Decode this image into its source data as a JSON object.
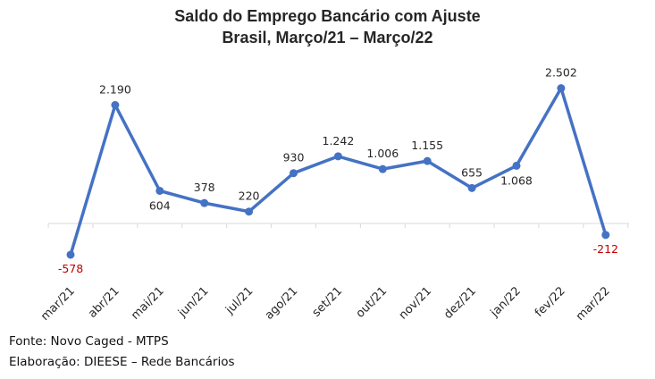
{
  "chart_data": {
    "type": "line",
    "title": "Saldo do Emprego Bancário com Ajuste",
    "subtitle": "Brasil, Março/21 – Março/22",
    "categories": [
      "mar/21",
      "abr/21",
      "mai/21",
      "jun/21",
      "jul/21",
      "ago/21",
      "set/21",
      "out/21",
      "nov/21",
      "dez/21",
      "jan/22",
      "fev/22",
      "mar/22"
    ],
    "series": [
      {
        "values": [
          -578,
          2190,
          604,
          378,
          220,
          930,
          1242,
          1006,
          1155,
          655,
          1068,
          2502,
          -212
        ]
      }
    ],
    "data_labels": [
      "-578",
      "2.190",
      "604",
      "378",
      "220",
      "930",
      "1.242",
      "1.006",
      "1.155",
      "655",
      "1.068",
      "2.502",
      "-212"
    ],
    "ylim": [
      -1000,
      3000
    ],
    "grid": false,
    "line_color": "#4472c4",
    "negative_label_color": "#c00000"
  },
  "footer": {
    "source": "Fonte: Novo Caged - MTPS",
    "credit": "Elaboração: DIEESE – Rede Bancários"
  }
}
